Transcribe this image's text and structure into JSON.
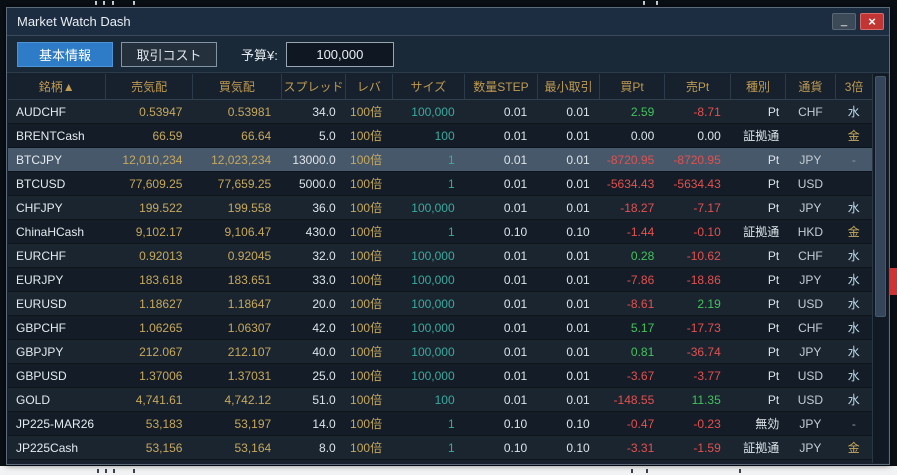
{
  "window": {
    "title": "Market Watch Dash",
    "minimize_label": "_",
    "close_label": "×"
  },
  "toolbar": {
    "tabs": [
      {
        "label": "基本情報",
        "active": true
      },
      {
        "label": "取引コスト",
        "active": false
      }
    ],
    "budget_label": "予算¥:",
    "budget_value": "100,000"
  },
  "table": {
    "columns": [
      {
        "key": "symbol",
        "label": "銘柄▲"
      },
      {
        "key": "bid",
        "label": "売気配"
      },
      {
        "key": "ask",
        "label": "買気配"
      },
      {
        "key": "spread",
        "label": "スプレッド"
      },
      {
        "key": "lev",
        "label": "レバ"
      },
      {
        "key": "size",
        "label": "サイズ"
      },
      {
        "key": "step",
        "label": "数量STEP"
      },
      {
        "key": "min",
        "label": "最小取引"
      },
      {
        "key": "buy_pt",
        "label": "買Pt"
      },
      {
        "key": "sell_pt",
        "label": "売Pt"
      },
      {
        "key": "type",
        "label": "種別"
      },
      {
        "key": "ccy",
        "label": "通貨"
      },
      {
        "key": "triple",
        "label": "3倍"
      }
    ],
    "rows": [
      {
        "symbol": "AUDCHF",
        "bid": "0.53947",
        "ask": "0.53981",
        "spread": "34.0",
        "lev": "100倍",
        "size": "100,000",
        "step": "0.01",
        "min": "0.01",
        "buy_pt": "2.59",
        "sell_pt": "-8.71",
        "type": "Pt",
        "ccy": "CHF",
        "triple": "水",
        "selected": false
      },
      {
        "symbol": "BRENTCash",
        "bid": "66.59",
        "ask": "66.64",
        "spread": "5.0",
        "lev": "100倍",
        "size": "100",
        "step": "0.01",
        "min": "0.01",
        "buy_pt": "0.00",
        "sell_pt": "0.00",
        "type": "証拠通",
        "ccy": "",
        "triple": "金",
        "selected": false
      },
      {
        "symbol": "BTCJPY",
        "bid": "12,010,234",
        "ask": "12,023,234",
        "spread": "13000.0",
        "lev": "100倍",
        "size": "1",
        "step": "0.01",
        "min": "0.01",
        "buy_pt": "-8720.95",
        "sell_pt": "-8720.95",
        "type": "Pt",
        "ccy": "JPY",
        "triple": "-",
        "selected": true
      },
      {
        "symbol": "BTCUSD",
        "bid": "77,609.25",
        "ask": "77,659.25",
        "spread": "5000.0",
        "lev": "100倍",
        "size": "1",
        "step": "0.01",
        "min": "0.01",
        "buy_pt": "-5634.43",
        "sell_pt": "-5634.43",
        "type": "Pt",
        "ccy": "USD",
        "triple": "",
        "selected": false
      },
      {
        "symbol": "CHFJPY",
        "bid": "199.522",
        "ask": "199.558",
        "spread": "36.0",
        "lev": "100倍",
        "size": "100,000",
        "step": "0.01",
        "min": "0.01",
        "buy_pt": "-18.27",
        "sell_pt": "-7.17",
        "type": "Pt",
        "ccy": "JPY",
        "triple": "水",
        "selected": false
      },
      {
        "symbol": "ChinaHCash",
        "bid": "9,102.17",
        "ask": "9,106.47",
        "spread": "430.0",
        "lev": "100倍",
        "size": "1",
        "step": "0.10",
        "min": "0.10",
        "buy_pt": "-1.44",
        "sell_pt": "-0.10",
        "type": "証拠通",
        "ccy": "HKD",
        "triple": "金",
        "selected": false
      },
      {
        "symbol": "EURCHF",
        "bid": "0.92013",
        "ask": "0.92045",
        "spread": "32.0",
        "lev": "100倍",
        "size": "100,000",
        "step": "0.01",
        "min": "0.01",
        "buy_pt": "0.28",
        "sell_pt": "-10.62",
        "type": "Pt",
        "ccy": "CHF",
        "triple": "水",
        "selected": false
      },
      {
        "symbol": "EURJPY",
        "bid": "183.618",
        "ask": "183.651",
        "spread": "33.0",
        "lev": "100倍",
        "size": "100,000",
        "step": "0.01",
        "min": "0.01",
        "buy_pt": "-7.86",
        "sell_pt": "-18.86",
        "type": "Pt",
        "ccy": "JPY",
        "triple": "水",
        "selected": false
      },
      {
        "symbol": "EURUSD",
        "bid": "1.18627",
        "ask": "1.18647",
        "spread": "20.0",
        "lev": "100倍",
        "size": "100,000",
        "step": "0.01",
        "min": "0.01",
        "buy_pt": "-8.61",
        "sell_pt": "2.19",
        "type": "Pt",
        "ccy": "USD",
        "triple": "水",
        "selected": false
      },
      {
        "symbol": "GBPCHF",
        "bid": "1.06265",
        "ask": "1.06307",
        "spread": "42.0",
        "lev": "100倍",
        "size": "100,000",
        "step": "0.01",
        "min": "0.01",
        "buy_pt": "5.17",
        "sell_pt": "-17.73",
        "type": "Pt",
        "ccy": "CHF",
        "triple": "水",
        "selected": false
      },
      {
        "symbol": "GBPJPY",
        "bid": "212.067",
        "ask": "212.107",
        "spread": "40.0",
        "lev": "100倍",
        "size": "100,000",
        "step": "0.01",
        "min": "0.01",
        "buy_pt": "0.81",
        "sell_pt": "-36.74",
        "type": "Pt",
        "ccy": "JPY",
        "triple": "水",
        "selected": false
      },
      {
        "symbol": "GBPUSD",
        "bid": "1.37006",
        "ask": "1.37031",
        "spread": "25.0",
        "lev": "100倍",
        "size": "100,000",
        "step": "0.01",
        "min": "0.01",
        "buy_pt": "-3.67",
        "sell_pt": "-3.77",
        "type": "Pt",
        "ccy": "USD",
        "triple": "水",
        "selected": false
      },
      {
        "symbol": "GOLD",
        "bid": "4,741.61",
        "ask": "4,742.12",
        "spread": "51.0",
        "lev": "100倍",
        "size": "100",
        "step": "0.01",
        "min": "0.01",
        "buy_pt": "-148.55",
        "sell_pt": "11.35",
        "type": "Pt",
        "ccy": "USD",
        "triple": "水",
        "selected": false
      },
      {
        "symbol": "JP225-MAR26",
        "bid": "53,183",
        "ask": "53,197",
        "spread": "14.0",
        "lev": "100倍",
        "size": "1",
        "step": "0.10",
        "min": "0.10",
        "buy_pt": "-0.47",
        "sell_pt": "-0.23",
        "type": "無効",
        "ccy": "JPY",
        "triple": "-",
        "selected": false
      },
      {
        "symbol": "JP225Cash",
        "bid": "53,156",
        "ask": "53,164",
        "spread": "8.0",
        "lev": "100倍",
        "size": "1",
        "step": "0.10",
        "min": "0.10",
        "buy_pt": "-3.31",
        "sell_pt": "-1.59",
        "type": "証拠通",
        "ccy": "JPY",
        "triple": "金",
        "selected": false
      }
    ]
  },
  "colors": {
    "accent_blue": "#2e7cc7",
    "header_text": "#c09a50",
    "gold": "#c7a85c",
    "teal": "#3aa99f",
    "green": "#41c35a",
    "red": "#e4504e",
    "selected_row": "#47586a",
    "close_red": "#c13535"
  }
}
